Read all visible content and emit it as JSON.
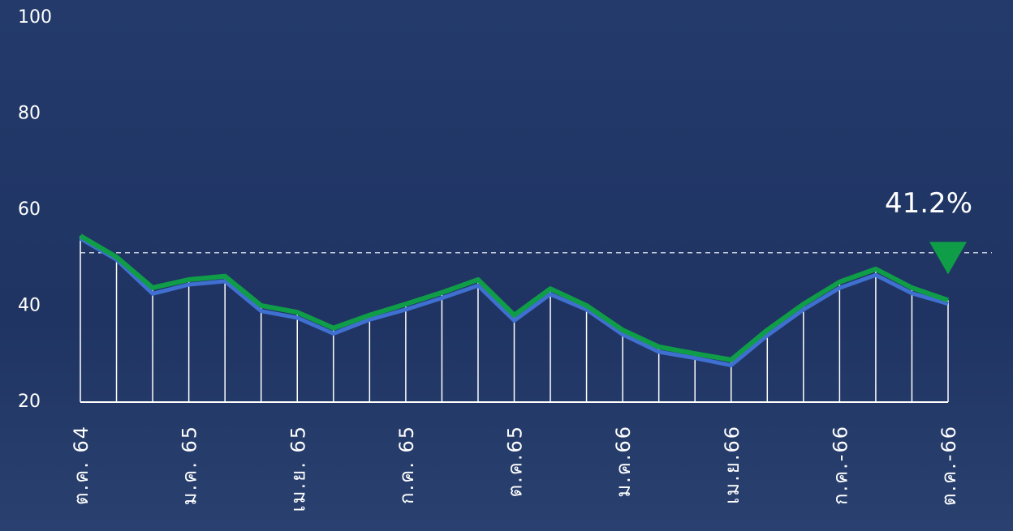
{
  "chart_data": {
    "type": "line",
    "categories": [
      "ต.ค. 64",
      null,
      null,
      "ม.ค. 65",
      null,
      null,
      "เม.ย. 65",
      null,
      null,
      "ก.ค. 65",
      null,
      null,
      "ต.ค.65",
      null,
      null,
      "ม.ค.66",
      null,
      null,
      "เม.ย.66",
      null,
      null,
      "ก.ค.-66",
      null,
      null,
      "ต.ค.-66"
    ],
    "series": [
      {
        "color": "#3f6fd0",
        "values": [
          54.4,
          50.0,
          42.9,
          44.8,
          45.5,
          39.3,
          37.9,
          34.6,
          37.5,
          39.6,
          42.0,
          44.6,
          37.3,
          42.8,
          39.6,
          34.4,
          30.8,
          29.5,
          28.0,
          34.2,
          39.6,
          44.1,
          46.8,
          43.0,
          40.8
        ]
      },
      {
        "color": "#0f9d47",
        "values": [
          54.6,
          50.2,
          43.8,
          45.5,
          46.2,
          40.1,
          38.7,
          35.4,
          38.1,
          40.4,
          42.8,
          45.5,
          38.1,
          43.6,
          40.1,
          35.0,
          31.5,
          30.1,
          28.8,
          35.0,
          40.4,
          45.0,
          47.7,
          43.8,
          41.2
        ],
        "value_labels": [
          null,
          null,
          null,
          null,
          null,
          null,
          null,
          null,
          null,
          null,
          null,
          null,
          null,
          null,
          null,
          null,
          null,
          null,
          null,
          null,
          null,
          null,
          null,
          null,
          "41.2%"
        ]
      }
    ],
    "reference_line": 51.1,
    "ylim": [
      20,
      100
    ],
    "yticks": [
      20,
      40,
      60,
      80,
      100
    ]
  }
}
